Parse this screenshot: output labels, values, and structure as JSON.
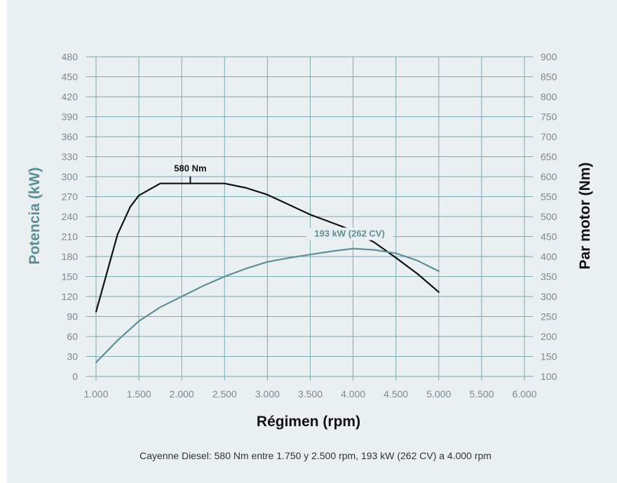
{
  "colors": {
    "background": "#eaeff2",
    "grid": "#7da9b0",
    "power": "#5e8f97",
    "torque": "#111111",
    "tick": "#7a8a93"
  },
  "chart_data": {
    "type": "line",
    "xlabel": "Régimen (rpm)",
    "ylabel_left": "Potencia (kW)",
    "ylabel_right": "Par motor (Nm)",
    "xlim": [
      1000,
      6000
    ],
    "ylim_left": [
      0,
      480
    ],
    "ylim_right": [
      100,
      900
    ],
    "x_ticks": [
      1000,
      1500,
      2000,
      2500,
      3000,
      3500,
      4000,
      4500,
      5000,
      5500,
      6000
    ],
    "x_tick_labels": [
      "1.000",
      "1.500",
      "2.000",
      "2.500",
      "3.000",
      "3.500",
      "4.000",
      "4.500",
      "5.000",
      "5.500",
      "6.000"
    ],
    "y_left_ticks": [
      0,
      30,
      60,
      90,
      120,
      150,
      180,
      210,
      240,
      270,
      300,
      330,
      360,
      390,
      420,
      450,
      480
    ],
    "y_right_ticks": [
      100,
      150,
      200,
      250,
      300,
      350,
      400,
      450,
      500,
      550,
      600,
      650,
      700,
      750,
      800,
      850,
      900
    ],
    "grid": true,
    "series": [
      {
        "axis": "right",
        "color": "#111111",
        "x": [
          1000,
          1250,
          1400,
          1500,
          1750,
          2000,
          2250,
          2500,
          2750,
          3000,
          3500,
          4000,
          4250,
          4500,
          4750,
          5000
        ],
        "y": [
          262,
          455,
          525,
          553,
          583,
          583,
          583,
          583,
          572,
          555,
          505,
          465,
          435,
          397,
          357,
          311
        ]
      },
      {
        "axis": "left",
        "color": "#5e8f97",
        "x": [
          1000,
          1250,
          1500,
          1750,
          2000,
          2250,
          2500,
          2750,
          3000,
          3250,
          3500,
          3750,
          4000,
          4250,
          4500,
          4750,
          5000
        ],
        "y": [
          21,
          54,
          83,
          104,
          120,
          136,
          150,
          162,
          172,
          178,
          183,
          188,
          192,
          190,
          185,
          174,
          158
        ]
      }
    ],
    "annotations": [
      {
        "text": "580 Nm",
        "x": 2100,
        "y": 583,
        "axis": "right"
      },
      {
        "text": "193 kW (262 CV)",
        "x": 4000,
        "y": 193,
        "axis": "left"
      }
    ],
    "caption": "Cayenne Diesel: 580 Nm entre 1.750 y 2.500 rpm, 193 kW (262 CV) a 4.000 rpm"
  }
}
